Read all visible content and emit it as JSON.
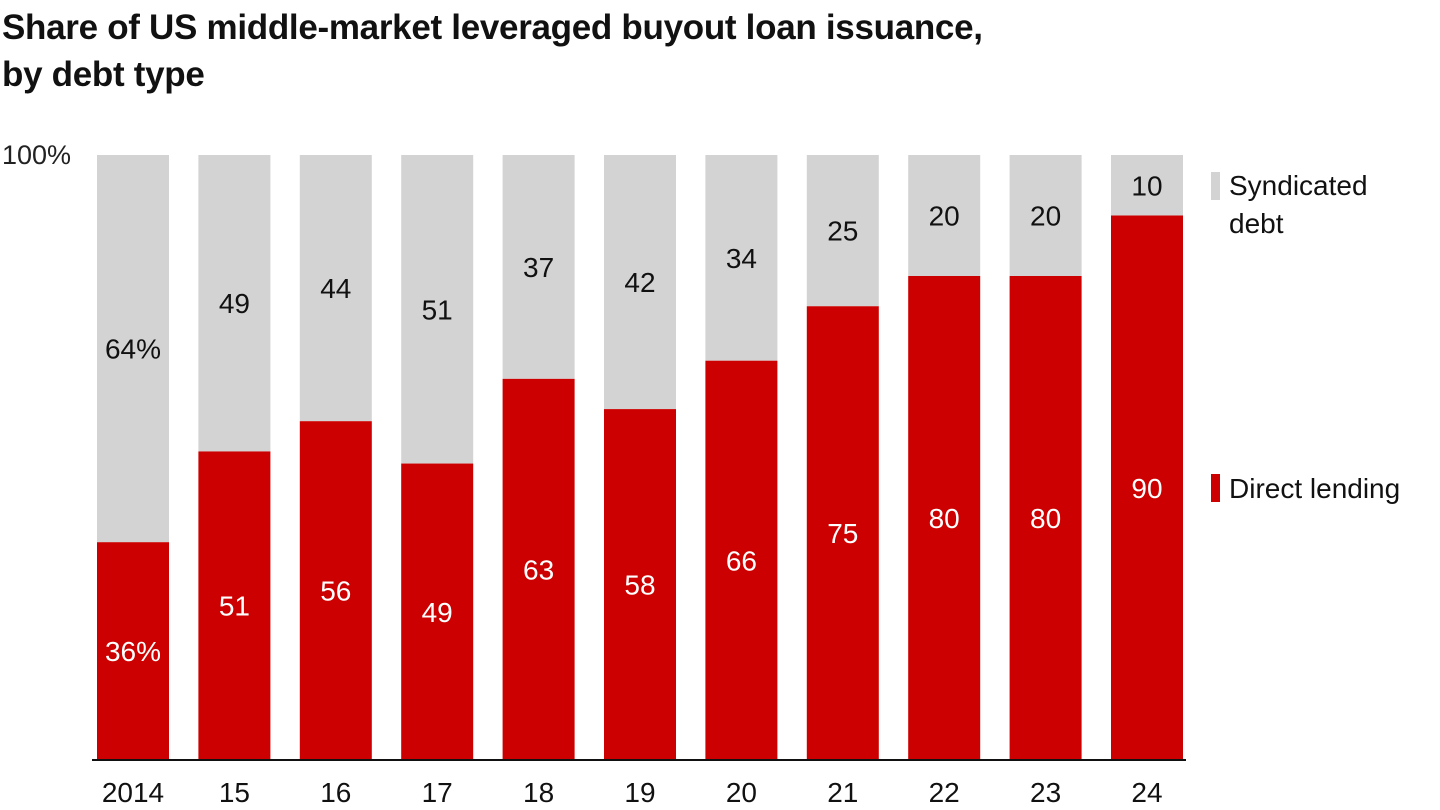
{
  "title_line1": "Share of US middle-market leveraged buyout loan issuance,",
  "title_line2": "by debt type",
  "chart_data": {
    "type": "bar",
    "stacked": true,
    "title": "Share of US middle-market leveraged buyout loan issuance, by debt type",
    "categories": [
      "2014",
      "15",
      "16",
      "17",
      "18",
      "19",
      "20",
      "21",
      "22",
      "23",
      "24"
    ],
    "series": [
      {
        "name": "Direct lending",
        "values": [
          36,
          51,
          56,
          49,
          63,
          58,
          66,
          75,
          80,
          80,
          90
        ],
        "color": "#cc0000",
        "labels": [
          "36%",
          "51",
          "56",
          "49",
          "63",
          "58",
          "66",
          "75",
          "80",
          "80",
          "90"
        ]
      },
      {
        "name": "Syndicated debt",
        "values": [
          64,
          49,
          44,
          51,
          37,
          42,
          34,
          25,
          20,
          20,
          10
        ],
        "color": "#d3d3d3",
        "labels": [
          "64%",
          "49",
          "44",
          "51",
          "37",
          "42",
          "34",
          "25",
          "20",
          "20",
          "10"
        ]
      }
    ],
    "legend": [
      {
        "lines": [
          "Syndicated",
          "debt"
        ],
        "color": "#d3d3d3"
      },
      {
        "lines": [
          "Direct lending"
        ],
        "color": "#cc0000"
      }
    ],
    "ylim": [
      0,
      100
    ],
    "y_axis_label": "100%",
    "legend_position": "right",
    "grid": false,
    "xlabel": "",
    "ylabel": ""
  }
}
